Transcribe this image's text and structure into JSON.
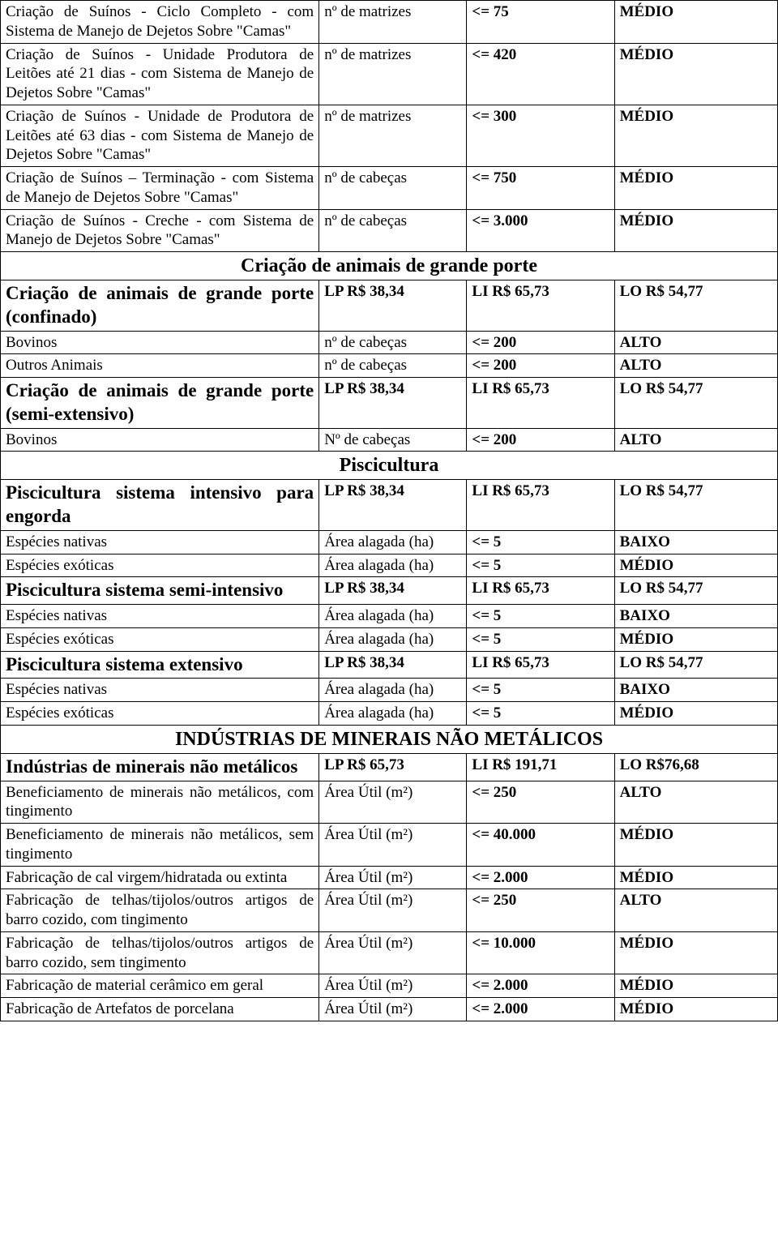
{
  "rows": [
    {
      "type": "data",
      "desc": "Criação de Suínos - Ciclo Completo - com Sistema de Manejo de Dejetos Sobre \"Camas\"",
      "desc_fmt": "justify",
      "c2": "nº de matrizes",
      "c3": "<= 75",
      "c4": "MÉDIO",
      "c3b": true,
      "c4b": true
    },
    {
      "type": "data",
      "desc": "Criação de Suínos - Unidade Produtora de Leitões até 21 dias - com Sistema de Manejo de Dejetos Sobre \"Camas\"",
      "desc_fmt": "justify",
      "c2": "nº de matrizes",
      "c3": "<= 420",
      "c4": "MÉDIO",
      "c3b": true,
      "c4b": true
    },
    {
      "type": "data",
      "desc": "Criação de Suínos - Unidade de Produtora de Leitões até 63 dias - com Sistema de Manejo de Dejetos Sobre \"Camas\"",
      "desc_fmt": "justify",
      "c2": "nº de matrizes",
      "c3": "<= 300",
      "c4": "MÉDIO",
      "c3b": true,
      "c4b": true
    },
    {
      "type": "data",
      "desc": "Criação de Suínos – Terminação - com Sistema de Manejo de Dejetos Sobre \"Camas\"",
      "desc_fmt": "justify",
      "c2": "nº de cabeças",
      "c3": "<= 750",
      "c4": "MÉDIO",
      "c3b": true,
      "c4b": true
    },
    {
      "type": "data",
      "desc": "Criação de Suínos - Creche - com Sistema de Manejo de Dejetos Sobre \"Camas\"",
      "desc_fmt": "justify",
      "c2": "nº de cabeças",
      "c3": "<= 3.000",
      "c4": "MÉDIO",
      "c3b": true,
      "c4b": true
    },
    {
      "type": "section",
      "title": "Criação de animais de grande porte"
    },
    {
      "type": "data",
      "desc": "Criação de animais de grande porte (confinado)",
      "desc_fmt": "desc-big justify",
      "c2": "LP R$ 38,34",
      "c3": "LI R$ 65,73",
      "c4": "LO R$ 54,77",
      "c2b": true,
      "c3b": true,
      "c4b": true
    },
    {
      "type": "data",
      "desc": "Bovinos",
      "c2": "nº de cabeças",
      "c3": "<= 200",
      "c4": "ALTO",
      "c3b": true,
      "c4b": true
    },
    {
      "type": "data",
      "desc": "Outros Animais",
      "c2": "nº de cabeças",
      "c3": "<= 200",
      "c4": "ALTO",
      "c3b": true,
      "c4b": true
    },
    {
      "type": "data",
      "desc": "Criação de animais de grande porte (semi-extensivo)",
      "desc_fmt": "desc-big justify",
      "c2": "LP R$ 38,34",
      "c3": "LI R$ 65,73",
      "c4": "LO R$ 54,77",
      "c2b": true,
      "c3b": true,
      "c4b": true
    },
    {
      "type": "data",
      "desc": "Bovinos",
      "c2": "Nº de cabeças",
      "c3": "<= 200",
      "c4": "ALTO",
      "c3b": true,
      "c4b": true
    },
    {
      "type": "section",
      "title": "Piscicultura"
    },
    {
      "type": "data",
      "desc": "Piscicultura sistema intensivo para engorda",
      "desc_fmt": "desc-big justify",
      "c2": "LP R$ 38,34",
      "c3": "LI R$ 65,73",
      "c4": "LO R$ 54,77",
      "c2b": true,
      "c3b": true,
      "c4b": true
    },
    {
      "type": "data",
      "desc": "Espécies nativas",
      "c2": "Área alagada (ha)",
      "c3": "<= 5",
      "c4": "BAIXO",
      "c3b": true,
      "c4b": true
    },
    {
      "type": "data",
      "desc": "Espécies exóticas",
      "c2": "Área alagada (ha)",
      "c3": "<= 5",
      "c4": "MÉDIO",
      "c3b": true,
      "c4b": true
    },
    {
      "type": "data",
      "desc": "Piscicultura sistema semi-intensivo",
      "desc_fmt": "desc-big justify",
      "c2": "LP R$ 38,34",
      "c3": "LI R$ 65,73",
      "c4": "LO R$ 54,77",
      "c2b": true,
      "c3b": true,
      "c4b": true
    },
    {
      "type": "data",
      "desc": "Espécies nativas",
      "c2": "Área alagada (ha)",
      "c3": "<= 5",
      "c4": "BAIXO",
      "c3b": true,
      "c4b": true
    },
    {
      "type": "data",
      "desc": "Espécies exóticas",
      "c2": "Área alagada (ha)",
      "c3": "<= 5",
      "c4": "MÉDIO",
      "c3b": true,
      "c4b": true
    },
    {
      "type": "data",
      "desc": "Piscicultura sistema extensivo",
      "desc_fmt": "desc-big",
      "c2": "LP R$ 38,34",
      "c3": "LI R$ 65,73",
      "c4": "LO R$ 54,77",
      "c2b": true,
      "c3b": true,
      "c4b": true
    },
    {
      "type": "data",
      "desc": "Espécies nativas",
      "c2": "Área alagada (ha)",
      "c3": "<= 5",
      "c4": "BAIXO",
      "c3b": true,
      "c4b": true
    },
    {
      "type": "data",
      "desc": "Espécies exóticas",
      "c2": "Área alagada (ha)",
      "c3": "<= 5",
      "c4": "MÉDIO",
      "c3b": true,
      "c4b": true
    },
    {
      "type": "section",
      "title": "INDÚSTRIAS DE MINERAIS NÃO METÁLICOS"
    },
    {
      "type": "data",
      "desc": "Indústrias de minerais não metálicos",
      "desc_fmt": "desc-big justify",
      "c2": "LP R$ 65,73",
      "c3": "LI R$ 191,71",
      "c4": "LO R$76,68",
      "c2b": true,
      "c3b": true,
      "c4b": true
    },
    {
      "type": "data",
      "desc": "Beneficiamento de minerais não metálicos, com tingimento",
      "desc_fmt": "justify",
      "c2": "Área Útil (m²)",
      "c3": "<= 250",
      "c4": "ALTO",
      "c3b": true,
      "c4b": true
    },
    {
      "type": "data",
      "desc": "Beneficiamento de minerais não metálicos, sem tingimento",
      "desc_fmt": "justify",
      "c2": "Área Útil (m²)",
      "c3": "<= 40.000",
      "c4": "MÉDIO",
      "c3b": true,
      "c4b": true
    },
    {
      "type": "data",
      "desc": "Fabricação de cal virgem/hidratada ou extinta",
      "desc_fmt": "justify",
      "c2": "Área Útil (m²)",
      "c3": "<= 2.000",
      "c4": "MÉDIO",
      "c3b": true,
      "c4b": true
    },
    {
      "type": "data",
      "desc": "Fabricação de telhas/tijolos/outros artigos de barro cozido, com tingimento",
      "desc_fmt": "justify",
      "c2": "Área Útil (m²)",
      "c3": "<= 250",
      "c4": "ALTO",
      "c3b": true,
      "c4b": true
    },
    {
      "type": "data",
      "desc": "Fabricação de telhas/tijolos/outros artigos de barro cozido, sem tingimento",
      "desc_fmt": "justify",
      "c2": "Área Útil (m²)",
      "c3": "<= 10.000",
      "c4": "MÉDIO",
      "c3b": true,
      "c4b": true
    },
    {
      "type": "data",
      "desc": "Fabricação de material cerâmico em geral",
      "desc_fmt": "justify",
      "c2": "Área Útil (m²)",
      "c3": "<= 2.000",
      "c4": "MÉDIO",
      "c3b": true,
      "c4b": true
    },
    {
      "type": "data",
      "desc": "Fabricação de Artefatos de porcelana",
      "c2": "Área Útil (m²)",
      "c3": "<= 2.000",
      "c4": "MÉDIO",
      "c3b": true,
      "c4b": true
    }
  ]
}
